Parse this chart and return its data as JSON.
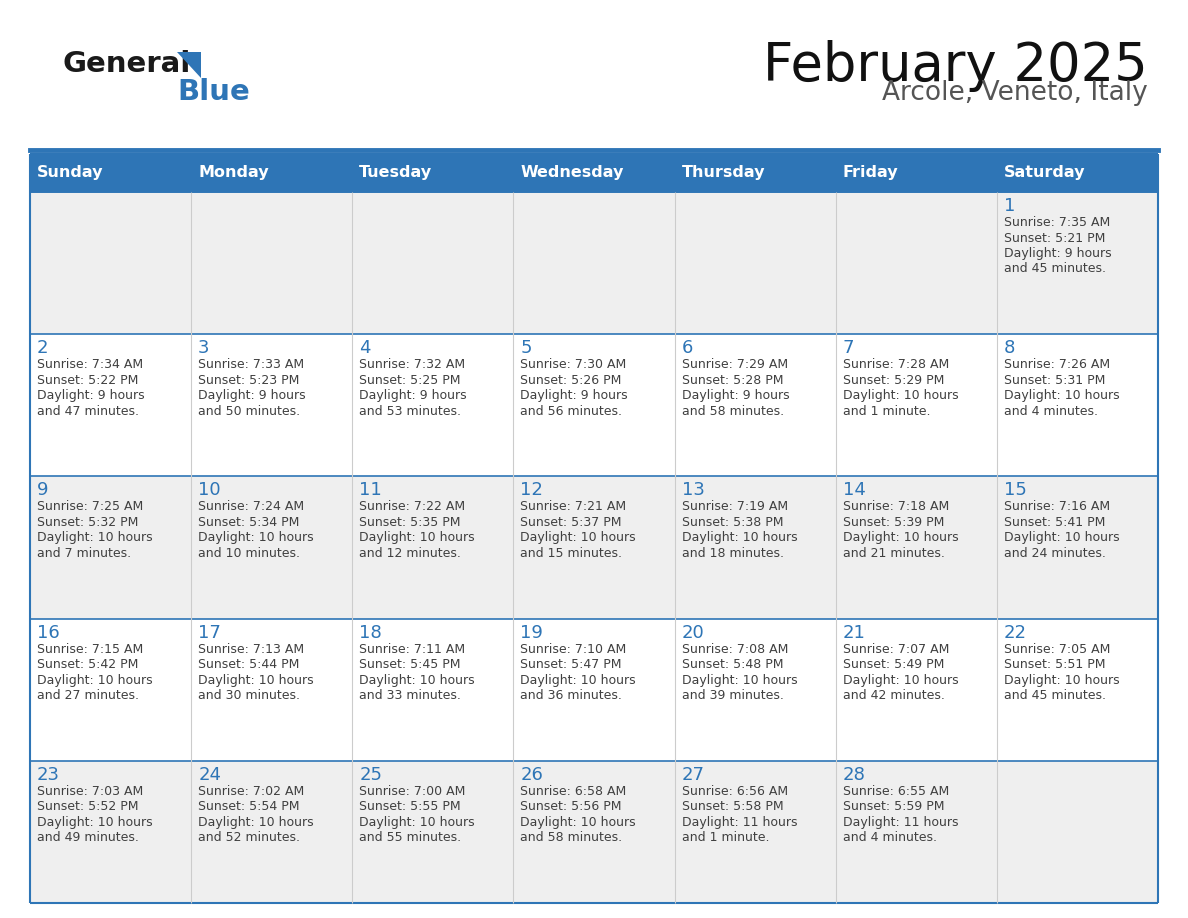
{
  "title": "February 2025",
  "subtitle": "Arcole, Veneto, Italy",
  "header_bg": "#2E75B6",
  "header_text_color": "#FFFFFF",
  "cell_bg_light": "#EFEFEF",
  "cell_bg_white": "#FFFFFF",
  "day_number_color": "#2E75B6",
  "text_color": "#404040",
  "border_color": "#2E75B6",
  "days_of_week": [
    "Sunday",
    "Monday",
    "Tuesday",
    "Wednesday",
    "Thursday",
    "Friday",
    "Saturday"
  ],
  "weeks": [
    [
      {
        "day": "",
        "sunrise": "",
        "sunset": "",
        "daylight": ""
      },
      {
        "day": "",
        "sunrise": "",
        "sunset": "",
        "daylight": ""
      },
      {
        "day": "",
        "sunrise": "",
        "sunset": "",
        "daylight": ""
      },
      {
        "day": "",
        "sunrise": "",
        "sunset": "",
        "daylight": ""
      },
      {
        "day": "",
        "sunrise": "",
        "sunset": "",
        "daylight": ""
      },
      {
        "day": "",
        "sunrise": "",
        "sunset": "",
        "daylight": ""
      },
      {
        "day": "1",
        "sunrise": "7:35 AM",
        "sunset": "5:21 PM",
        "daylight": "9 hours\nand 45 minutes."
      }
    ],
    [
      {
        "day": "2",
        "sunrise": "7:34 AM",
        "sunset": "5:22 PM",
        "daylight": "9 hours\nand 47 minutes."
      },
      {
        "day": "3",
        "sunrise": "7:33 AM",
        "sunset": "5:23 PM",
        "daylight": "9 hours\nand 50 minutes."
      },
      {
        "day": "4",
        "sunrise": "7:32 AM",
        "sunset": "5:25 PM",
        "daylight": "9 hours\nand 53 minutes."
      },
      {
        "day": "5",
        "sunrise": "7:30 AM",
        "sunset": "5:26 PM",
        "daylight": "9 hours\nand 56 minutes."
      },
      {
        "day": "6",
        "sunrise": "7:29 AM",
        "sunset": "5:28 PM",
        "daylight": "9 hours\nand 58 minutes."
      },
      {
        "day": "7",
        "sunrise": "7:28 AM",
        "sunset": "5:29 PM",
        "daylight": "10 hours\nand 1 minute."
      },
      {
        "day": "8",
        "sunrise": "7:26 AM",
        "sunset": "5:31 PM",
        "daylight": "10 hours\nand 4 minutes."
      }
    ],
    [
      {
        "day": "9",
        "sunrise": "7:25 AM",
        "sunset": "5:32 PM",
        "daylight": "10 hours\nand 7 minutes."
      },
      {
        "day": "10",
        "sunrise": "7:24 AM",
        "sunset": "5:34 PM",
        "daylight": "10 hours\nand 10 minutes."
      },
      {
        "day": "11",
        "sunrise": "7:22 AM",
        "sunset": "5:35 PM",
        "daylight": "10 hours\nand 12 minutes."
      },
      {
        "day": "12",
        "sunrise": "7:21 AM",
        "sunset": "5:37 PM",
        "daylight": "10 hours\nand 15 minutes."
      },
      {
        "day": "13",
        "sunrise": "7:19 AM",
        "sunset": "5:38 PM",
        "daylight": "10 hours\nand 18 minutes."
      },
      {
        "day": "14",
        "sunrise": "7:18 AM",
        "sunset": "5:39 PM",
        "daylight": "10 hours\nand 21 minutes."
      },
      {
        "day": "15",
        "sunrise": "7:16 AM",
        "sunset": "5:41 PM",
        "daylight": "10 hours\nand 24 minutes."
      }
    ],
    [
      {
        "day": "16",
        "sunrise": "7:15 AM",
        "sunset": "5:42 PM",
        "daylight": "10 hours\nand 27 minutes."
      },
      {
        "day": "17",
        "sunrise": "7:13 AM",
        "sunset": "5:44 PM",
        "daylight": "10 hours\nand 30 minutes."
      },
      {
        "day": "18",
        "sunrise": "7:11 AM",
        "sunset": "5:45 PM",
        "daylight": "10 hours\nand 33 minutes."
      },
      {
        "day": "19",
        "sunrise": "7:10 AM",
        "sunset": "5:47 PM",
        "daylight": "10 hours\nand 36 minutes."
      },
      {
        "day": "20",
        "sunrise": "7:08 AM",
        "sunset": "5:48 PM",
        "daylight": "10 hours\nand 39 minutes."
      },
      {
        "day": "21",
        "sunrise": "7:07 AM",
        "sunset": "5:49 PM",
        "daylight": "10 hours\nand 42 minutes."
      },
      {
        "day": "22",
        "sunrise": "7:05 AM",
        "sunset": "5:51 PM",
        "daylight": "10 hours\nand 45 minutes."
      }
    ],
    [
      {
        "day": "23",
        "sunrise": "7:03 AM",
        "sunset": "5:52 PM",
        "daylight": "10 hours\nand 49 minutes."
      },
      {
        "day": "24",
        "sunrise": "7:02 AM",
        "sunset": "5:54 PM",
        "daylight": "10 hours\nand 52 minutes."
      },
      {
        "day": "25",
        "sunrise": "7:00 AM",
        "sunset": "5:55 PM",
        "daylight": "10 hours\nand 55 minutes."
      },
      {
        "day": "26",
        "sunrise": "6:58 AM",
        "sunset": "5:56 PM",
        "daylight": "10 hours\nand 58 minutes."
      },
      {
        "day": "27",
        "sunrise": "6:56 AM",
        "sunset": "5:58 PM",
        "daylight": "11 hours\nand 1 minute."
      },
      {
        "day": "28",
        "sunrise": "6:55 AM",
        "sunset": "5:59 PM",
        "daylight": "11 hours\nand 4 minutes."
      },
      {
        "day": "",
        "sunrise": "",
        "sunset": "",
        "daylight": ""
      }
    ]
  ],
  "logo_general_color": "#1a1a1a",
  "logo_blue_color": "#2E75B6",
  "logo_triangle_color": "#2E75B6"
}
